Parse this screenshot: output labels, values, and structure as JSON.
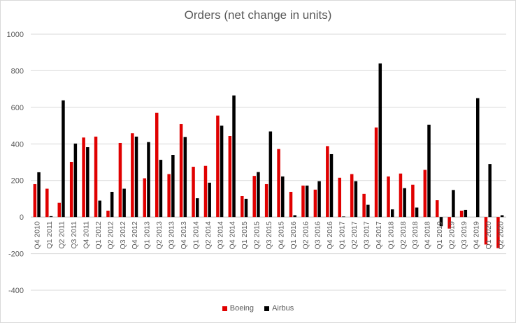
{
  "chart_data": {
    "type": "bar",
    "title": "Orders (net change in units)",
    "xlabel": "",
    "ylabel": "",
    "ylim": [
      -400,
      1000
    ],
    "yticks": [
      1000,
      800,
      600,
      400,
      200,
      0,
      -200,
      -400
    ],
    "grid": true,
    "legend": "bottom",
    "categories": [
      "Q4 2010",
      "Q1 2011",
      "Q2 2011",
      "Q3 2011",
      "Q4 2011",
      "Q1 2012",
      "Q2 2012",
      "Q3 2012",
      "Q4 2012",
      "Q1 2013",
      "Q2 2013",
      "Q3 2013",
      "Q4 2013",
      "Q1 2014",
      "Q2 2014",
      "Q3 2014",
      "Q4 2014",
      "Q1 2015",
      "Q2 2015",
      "Q3 2015",
      "Q4 2015",
      "Q1 2016",
      "Q2 2016",
      "Q3 2016",
      "Q4 2016",
      "Q1 2017",
      "Q2 2017",
      "Q3 2017",
      "Q4 2017",
      "Q1 2018",
      "Q2 2018",
      "Q3 2018",
      "Q4 2018",
      "Q1 2019",
      "Q2 2019",
      "Q3 2019",
      "Q4 2019",
      "Q1 2020",
      "Q2 2020"
    ],
    "series": [
      {
        "name": "Boeing",
        "color": "#e00000",
        "values": [
          180,
          155,
          78,
          302,
          435,
          440,
          35,
          405,
          458,
          212,
          570,
          235,
          508,
          275,
          280,
          555,
          443,
          115,
          225,
          180,
          372,
          138,
          172,
          150,
          388,
          215,
          235,
          127,
          490,
          222,
          238,
          177,
          258,
          92,
          -63,
          35,
          0,
          -150,
          -170
        ]
      },
      {
        "name": "Airbus",
        "color": "#000000",
        "values": [
          245,
          5,
          638,
          402,
          382,
          90,
          138,
          155,
          440,
          410,
          313,
          340,
          438,
          103,
          188,
          500,
          665,
          100,
          246,
          468,
          222,
          10,
          172,
          196,
          344,
          3,
          196,
          67,
          840,
          42,
          158,
          52,
          505,
          -50,
          148,
          39,
          650,
          290,
          10
        ]
      }
    ]
  }
}
